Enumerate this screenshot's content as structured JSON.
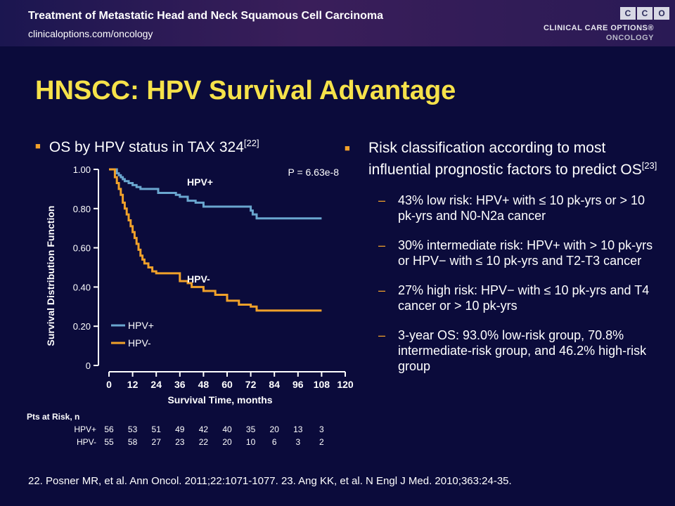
{
  "header": {
    "title": "Treatment of Metastatic Head and Neck Squamous Cell Carcinoma",
    "url": "clinicaloptions.com/oncology",
    "logo_letters": [
      "C",
      "C",
      "O"
    ],
    "logo_line1": "CLINICAL CARE OPTIONS®",
    "logo_line2": "ONCOLOGY"
  },
  "slide_title": "HNSCC: HPV Survival Advantage",
  "left": {
    "bullet": "OS by HPV status in TAX 324",
    "ref": "[22]"
  },
  "right": {
    "bullet": "Risk classification according to most influential prognostic factors to predict OS",
    "ref": "[23]",
    "sub_items": [
      "43% low risk: HPV+ with ≤ 10 pk-yrs or > 10 pk-yrs and N0-N2a cancer",
      "30% intermediate risk: HPV+ with > 10 pk-yrs or HPV− with ≤ 10 pk-yrs and T2-T3 cancer",
      "27% high risk: HPV− with ≤ 10 pk-yrs and T4 cancer or > 10 pk-yrs",
      "3-year OS: 93.0% low-risk group, 70.8% intermediate-risk group, and 46.2% high-risk group"
    ],
    "dash": "–"
  },
  "footnote": "22. Posner MR, et al. Ann Oncol. 2011;22:1071-1077. 23. Ang KK, et al. N Engl J Med. 2010;363:24-35.",
  "chart_data": {
    "type": "line",
    "subtype": "kaplan-meier",
    "xlabel": "Survival Time, months",
    "ylabel": "Survival Distribution Function",
    "xlim": [
      0,
      120
    ],
    "ylim": [
      0,
      1
    ],
    "xticks": [
      0,
      12,
      24,
      36,
      48,
      60,
      72,
      84,
      96,
      108,
      120
    ],
    "yticks": [
      0,
      0.2,
      0.4,
      0.6,
      0.8,
      1.0
    ],
    "ytick_labels": [
      "0",
      "0.20",
      "0.40",
      "0.60",
      "0.80",
      "1.00"
    ],
    "annotation": "P = 6.63e-8",
    "grid": false,
    "legend_position": "bottom-left",
    "colors": {
      "hpv_pos": "#6aa6cf",
      "hpv_neg": "#f0a12a",
      "axis": "#ffffff"
    },
    "series": [
      {
        "name": "HPV+",
        "label": "HPV+",
        "x": [
          0,
          3,
          4,
          5,
          6,
          7,
          8,
          10,
          12,
          14,
          16,
          24,
          25,
          32,
          34,
          36,
          40,
          44,
          48,
          50,
          60,
          70,
          72,
          73,
          75,
          108
        ],
        "y": [
          1.0,
          1.0,
          0.98,
          0.97,
          0.96,
          0.95,
          0.94,
          0.93,
          0.92,
          0.91,
          0.9,
          0.9,
          0.88,
          0.88,
          0.87,
          0.86,
          0.84,
          0.83,
          0.81,
          0.81,
          0.81,
          0.81,
          0.79,
          0.77,
          0.75,
          0.75
        ]
      },
      {
        "name": "HPV-",
        "label": "HPV-",
        "x": [
          0,
          3,
          4,
          5,
          6,
          7,
          8,
          9,
          10,
          11,
          12,
          13,
          14,
          15,
          16,
          17,
          18,
          20,
          22,
          24,
          30,
          36,
          40,
          42,
          48,
          54,
          60,
          66,
          72,
          75,
          108
        ],
        "y": [
          1.0,
          0.96,
          0.93,
          0.9,
          0.87,
          0.83,
          0.8,
          0.77,
          0.74,
          0.71,
          0.68,
          0.65,
          0.62,
          0.59,
          0.56,
          0.54,
          0.52,
          0.5,
          0.48,
          0.47,
          0.47,
          0.43,
          0.42,
          0.4,
          0.38,
          0.36,
          0.33,
          0.31,
          0.3,
          0.28,
          0.28
        ]
      }
    ],
    "pts_at_risk": {
      "title": "Pts at Risk, n",
      "x": [
        0,
        12,
        24,
        36,
        48,
        60,
        72,
        84,
        96,
        108
      ],
      "rows": [
        {
          "label": "HPV+",
          "values": [
            "56",
            "53",
            "51",
            "49",
            "42",
            "40",
            "35",
            "20",
            "13",
            "3"
          ]
        },
        {
          "label": "HPV-",
          "values": [
            "55",
            "58",
            "27",
            "23",
            "22",
            "20",
            "10",
            "6",
            "3",
            "2"
          ]
        }
      ]
    }
  }
}
